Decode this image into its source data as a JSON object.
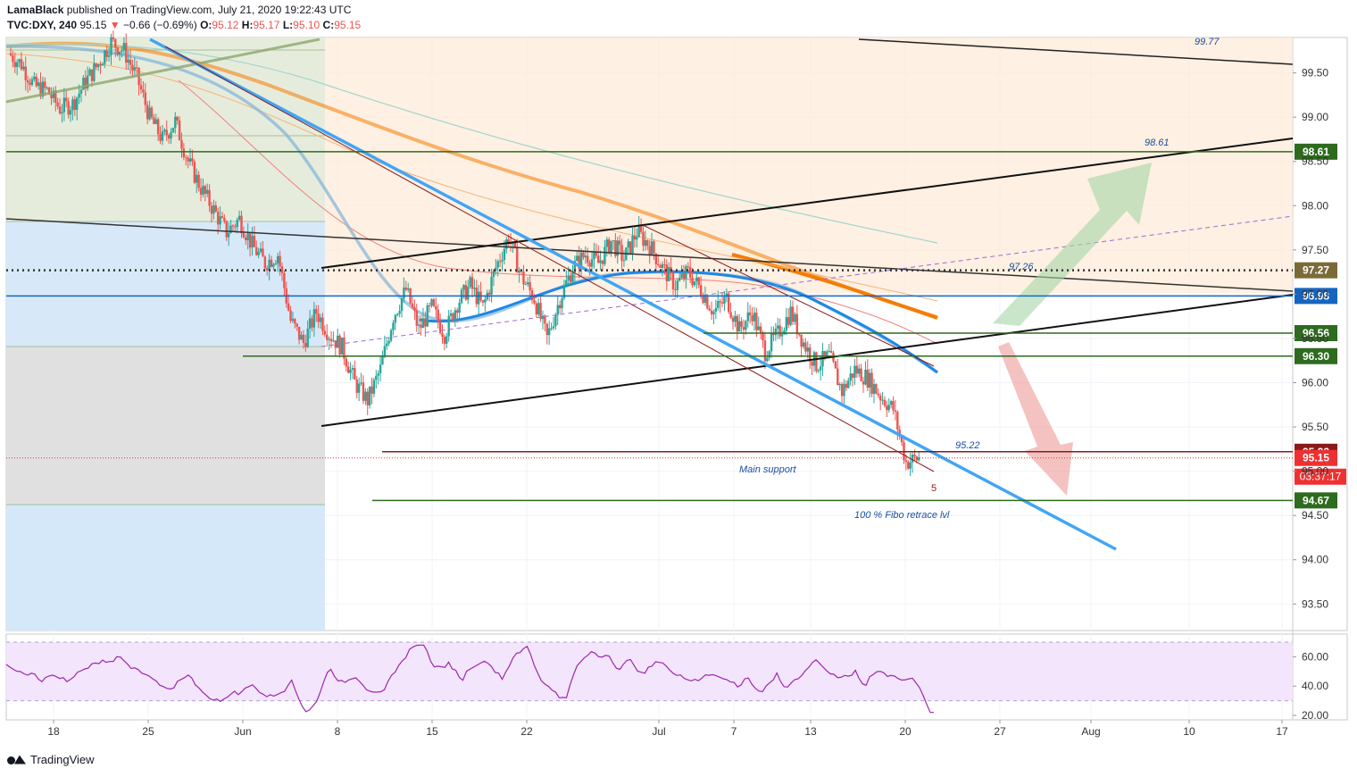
{
  "header": {
    "author": "LamaBlack",
    "published": "published on TradingView.com, July 21, 2020 19:22:43 UTC",
    "symbol": "TVC:DXY, 240",
    "last": "95.15",
    "change": "−0.66 (−0.69%)",
    "open_label": "O:",
    "open": "95.12",
    "high_label": "H:",
    "high": "95.17",
    "low_label": "L:",
    "low": "95.10",
    "close_label": "C:",
    "close": "95.15"
  },
  "footer": {
    "brand": "TradingView"
  },
  "colors": {
    "up": "#26a69a",
    "down": "#ef5350",
    "level_green": "#2e6b1e",
    "level_blue": "#1565c0",
    "ema_orange": "#f57c00",
    "blue_trend": "#42a5f5",
    "rsi": "#9c27b0"
  },
  "chart_data": [
    {
      "type": "candlestick",
      "title": "",
      "y_axis_ticks": [
        "99.50",
        "99.00",
        "98.50",
        "98.00",
        "97.50",
        "97.00",
        "96.50",
        "96.00",
        "95.50",
        "95.00",
        "94.50",
        "94.00",
        "93.50"
      ],
      "x_axis_ticks": [
        "18",
        "25",
        "Jun",
        "8",
        "15",
        "22",
        "Jul",
        "7",
        "13",
        "20",
        "27",
        "Aug",
        "10",
        "17"
      ],
      "ylim": [
        93.2,
        99.9
      ],
      "price_levels": [
        {
          "value": 98.61,
          "label": "98.61",
          "color": "#2e6b1e"
        },
        {
          "value": 97.27,
          "label": "97.27",
          "color": "#7d6b3a"
        },
        {
          "value": 96.98,
          "label": "96.98",
          "color": "#1565c0"
        },
        {
          "value": 96.56,
          "label": "96.56",
          "color": "#2e6b1e"
        },
        {
          "value": 96.3,
          "label": "96.30",
          "color": "#2e6b1e"
        },
        {
          "value": 95.22,
          "label": "95.22",
          "color": "#8b1a1a"
        },
        {
          "value": 95.15,
          "label": "95.15",
          "color": "#ef3030"
        },
        {
          "value": 94.67,
          "label": "94.67",
          "color": "#2e6b1e"
        }
      ],
      "countdown": "03:37:17",
      "annotations": [
        {
          "text": "99.77"
        },
        {
          "text": "98.61"
        },
        {
          "text": "97.26"
        },
        {
          "text": "95.22"
        },
        {
          "text": "Main support"
        },
        {
          "text": "5"
        },
        {
          "text": "100 % Fibo retrace lvl"
        }
      ],
      "close_path": [
        99.72,
        99.6,
        99.35,
        99.3,
        99.1,
        99.15,
        99.4,
        99.6,
        99.85,
        99.75,
        99.45,
        99.0,
        98.75,
        98.95,
        98.5,
        98.2,
        97.95,
        97.7,
        97.85,
        97.55,
        97.35,
        97.45,
        96.7,
        96.45,
        96.8,
        96.55,
        96.4,
        96.0,
        95.8,
        96.15,
        96.75,
        97.05,
        96.6,
        96.85,
        96.55,
        96.9,
        97.1,
        96.85,
        97.3,
        97.65,
        97.2,
        96.95,
        96.5,
        96.95,
        97.3,
        97.45,
        97.35,
        97.6,
        97.4,
        97.7,
        97.55,
        97.3,
        97.1,
        97.25,
        97.05,
        96.8,
        96.95,
        96.6,
        96.8,
        96.35,
        96.55,
        96.8,
        96.45,
        96.2,
        96.3,
        95.9,
        96.15,
        96.05,
        95.85,
        95.7,
        95.1,
        95.15
      ]
    },
    {
      "type": "line",
      "title": "",
      "y_axis_ticks": [
        "60.00",
        "40.00",
        "20.00"
      ],
      "ylim": [
        20,
        70
      ],
      "band": [
        30,
        70
      ]
    }
  ]
}
